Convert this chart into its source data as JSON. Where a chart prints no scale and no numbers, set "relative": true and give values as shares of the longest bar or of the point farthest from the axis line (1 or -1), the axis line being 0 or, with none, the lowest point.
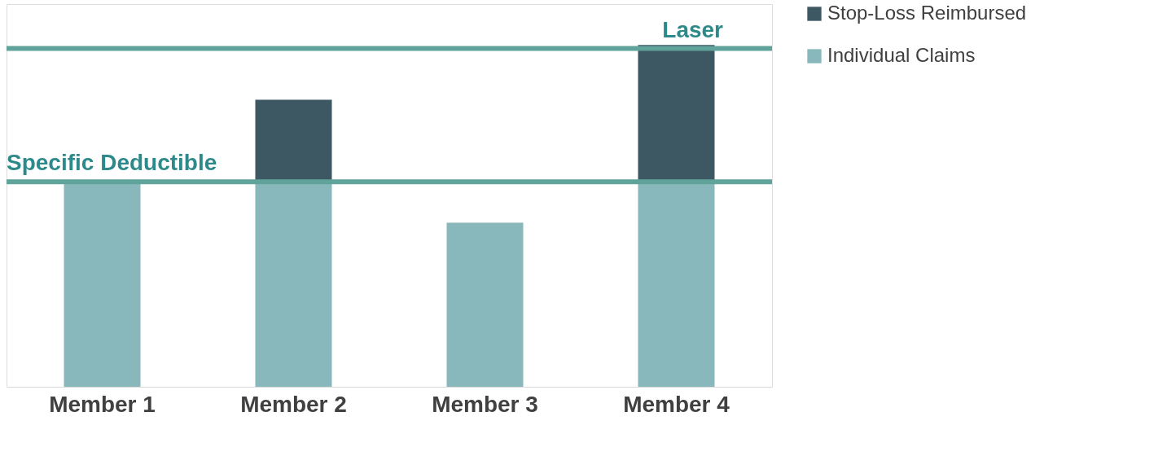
{
  "chart_data": {
    "type": "bar",
    "stacked": true,
    "relative": true,
    "legend": "right",
    "categories": [
      "Member 1",
      "Member 2",
      "Member 3",
      "Member 4"
    ],
    "series": [
      {
        "name": "Individual Claims",
        "color": "#88b8bb",
        "values": [
          0.6,
          0.6,
          0.48,
          0.6
        ]
      },
      {
        "name": "Stop-Loss Reimbursed",
        "color": "#3d5763",
        "values": [
          null,
          0.24,
          null,
          0.4
        ]
      }
    ],
    "ref_lines": [
      {
        "axis": "y",
        "value": 0.6,
        "label": "Specific Deductible",
        "color": "#5fa39a"
      },
      {
        "axis": "y",
        "value": 0.99,
        "label": "Laser",
        "color": "#5fa39a"
      }
    ]
  }
}
